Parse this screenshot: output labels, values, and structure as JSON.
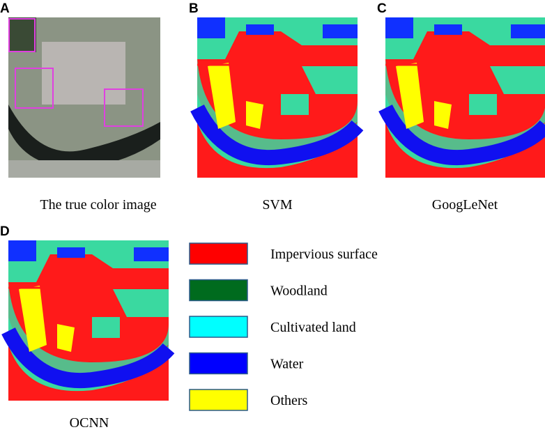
{
  "panels": [
    {
      "letter": "A",
      "caption": "The true color image"
    },
    {
      "letter": "B",
      "caption": "SVM"
    },
    {
      "letter": "C",
      "caption": "GoogLeNet"
    },
    {
      "letter": "D",
      "caption": "OCNN"
    }
  ],
  "legend": [
    {
      "label": "Impervious surface",
      "color": "#ff0000"
    },
    {
      "label": "Woodland",
      "color": "#006b1e"
    },
    {
      "label": "Cultivated land",
      "color": "#00ffff"
    },
    {
      "label": "Water",
      "color": "#0000ff"
    },
    {
      "label": "Others",
      "color": "#ffff00"
    }
  ]
}
